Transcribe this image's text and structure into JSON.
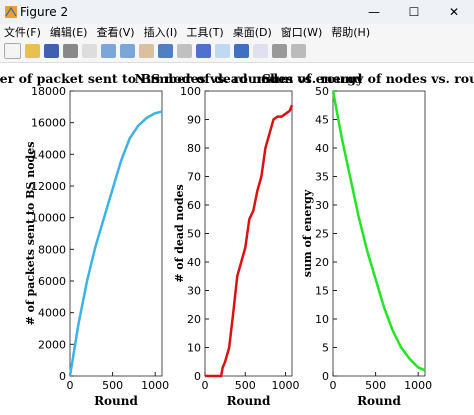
{
  "window": {
    "title": "Figure 2",
    "menu": [
      "文件(F)",
      "编辑(E)",
      "查看(V)",
      "插入(I)",
      "工具(T)",
      "桌面(D)",
      "窗口(W)",
      "帮助(H)"
    ]
  },
  "chart_data": [
    {
      "type": "line",
      "title": "Number of packet sent to BS nodes vs. round",
      "xlabel": "Round",
      "ylabel": "# of packets sent to BS nodes",
      "x": [
        0,
        100,
        200,
        300,
        400,
        500,
        600,
        700,
        800,
        900,
        1000,
        1080
      ],
      "series": [
        {
          "color": "#3bb3e6",
          "values": [
            0,
            3300,
            6000,
            8200,
            10000,
            11800,
            13600,
            15000,
            15800,
            16300,
            16600,
            16700
          ]
        }
      ],
      "xlim": [
        0,
        1080
      ],
      "xticks": [
        0,
        500,
        1000
      ],
      "ylim": [
        0,
        18000
      ],
      "yticks": [
        0,
        2000,
        4000,
        6000,
        8000,
        10000,
        12000,
        14000,
        16000,
        18000
      ]
    },
    {
      "type": "line",
      "title": "Number of dead nodes vs. round",
      "xlabel": "Round",
      "ylabel": "# of dead nodes",
      "x": [
        0,
        100,
        200,
        220,
        250,
        300,
        350,
        400,
        450,
        500,
        550,
        600,
        650,
        700,
        750,
        800,
        850,
        900,
        950,
        1000,
        1050,
        1080
      ],
      "series": [
        {
          "color": "#dd1111",
          "values": [
            0,
            0,
            0,
            3,
            5,
            10,
            22,
            35,
            40,
            45,
            55,
            58,
            65,
            70,
            80,
            85,
            90,
            91,
            91,
            92,
            93,
            95
          ]
        }
      ],
      "xlim": [
        0,
        1080
      ],
      "xticks": [
        0,
        500,
        1000
      ],
      "ylim": [
        0,
        100
      ],
      "yticks": [
        0,
        10,
        20,
        30,
        40,
        50,
        60,
        70,
        80,
        90,
        100
      ]
    },
    {
      "type": "line",
      "title": "Sum of energy of nodes vs. round",
      "xlabel": "Round",
      "ylabel": "sum of energy",
      "x": [
        0,
        100,
        200,
        300,
        400,
        500,
        600,
        700,
        800,
        900,
        1000,
        1080
      ],
      "series": [
        {
          "color": "#22e622",
          "values": [
            50,
            42,
            35,
            28,
            22,
            17,
            12,
            8,
            5,
            3,
            1.5,
            1
          ]
        }
      ],
      "xlim": [
        0,
        1080
      ],
      "xticks": [
        0,
        500,
        1000
      ],
      "ylim": [
        0,
        50
      ],
      "yticks": [
        0,
        5,
        10,
        15,
        20,
        25,
        30,
        35,
        40,
        45,
        50
      ]
    }
  ]
}
